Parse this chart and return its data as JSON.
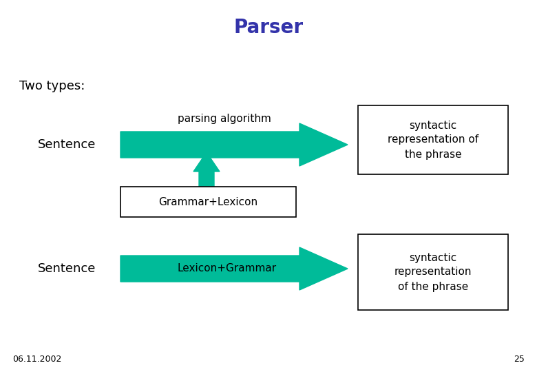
{
  "title": "Parser",
  "title_color": "#3333aa",
  "title_fontsize": 20,
  "bg_color": "#ffffff",
  "text_color": "#000000",
  "arrow_color": "#00bb99",
  "two_types_text": "Two types:",
  "fontsize_main": 13,
  "fontsize_label": 11,
  "date_text": "06.11.2002",
  "page_text": "25"
}
